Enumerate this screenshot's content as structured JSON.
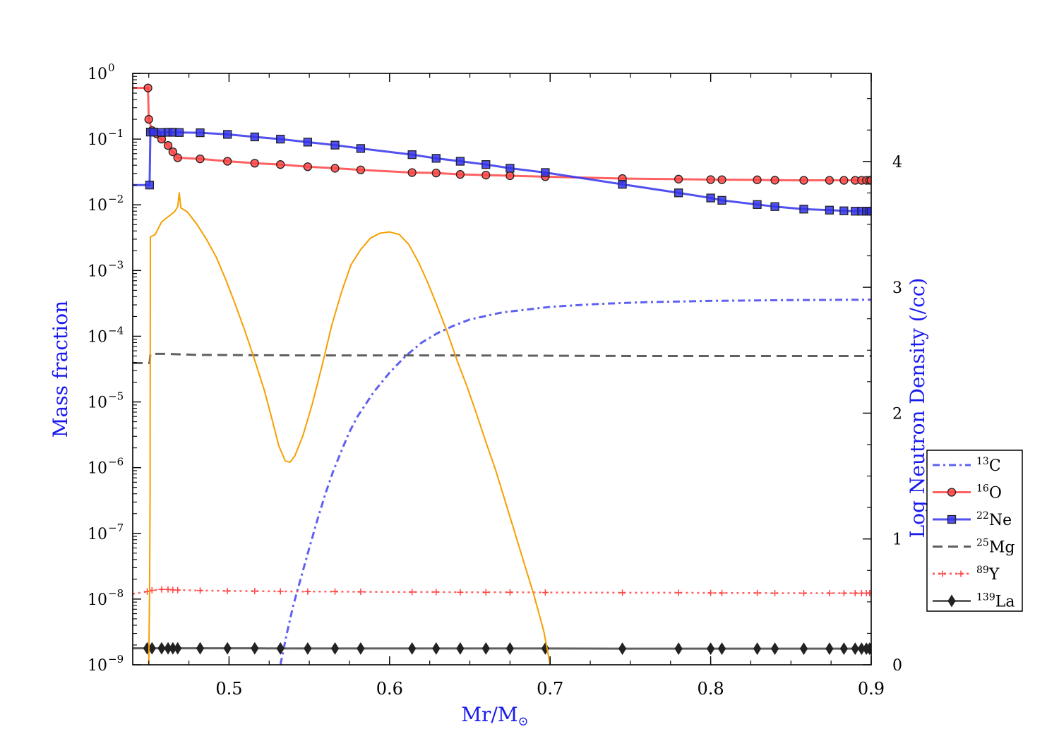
{
  "chart_data": {
    "type": "line",
    "xlabel": "Mr/M",
    "xlabel_symbol": "⊙",
    "ylabel_left": "Mass fraction",
    "ylabel_right": "Log Neutron Density (/cc)",
    "xlim": [
      0.44,
      0.9
    ],
    "ylim_left": [
      1e-09,
      1
    ],
    "yscale_left": "log",
    "ylim_right": [
      0,
      4.7
    ],
    "x_ticks": [
      0.5,
      0.6,
      0.7,
      0.8,
      0.9
    ],
    "x_tick_labels": [
      "0.5",
      "0.6",
      "0.7",
      "0.8",
      "0.9"
    ],
    "y_left_ticks": [
      -9,
      -8,
      -7,
      -6,
      -5,
      -4,
      -3,
      -2,
      -1,
      0
    ],
    "y_left_tick_labels": [
      {
        "base": "10",
        "exp": "−9"
      },
      {
        "base": "10",
        "exp": "−8"
      },
      {
        "base": "10",
        "exp": "−7"
      },
      {
        "base": "10",
        "exp": "−6"
      },
      {
        "base": "10",
        "exp": "−5"
      },
      {
        "base": "10",
        "exp": "−4"
      },
      {
        "base": "10",
        "exp": "−3"
      },
      {
        "base": "10",
        "exp": "−2"
      },
      {
        "base": "10",
        "exp": "−1"
      },
      {
        "base": "10",
        "exp": "0"
      }
    ],
    "y_right_ticks": [
      0,
      1,
      2,
      3,
      4
    ],
    "y_right_tick_labels": [
      "0",
      "1",
      "2",
      "3",
      "4"
    ],
    "legend_position": "right, outside plot",
    "series": [
      {
        "name": "13C",
        "label_mass": "13",
        "label_el": "C",
        "color": "#4444ee",
        "style": "dashdot",
        "marker": "none",
        "axis": "left",
        "points": [
          [
            0.532,
            1e-09
          ],
          [
            0.536,
            3e-09
          ],
          [
            0.54,
            8e-09
          ],
          [
            0.545,
            2.2e-08
          ],
          [
            0.55,
            6e-08
          ],
          [
            0.555,
            1.6e-07
          ],
          [
            0.56,
            4e-07
          ],
          [
            0.565,
            9e-07
          ],
          [
            0.57,
            1.8e-06
          ],
          [
            0.575,
            3.5e-06
          ],
          [
            0.58,
            6e-06
          ],
          [
            0.59,
            1.4e-05
          ],
          [
            0.6,
            2.8e-05
          ],
          [
            0.61,
            5e-05
          ],
          [
            0.62,
            8e-05
          ],
          [
            0.63,
            0.000112
          ],
          [
            0.64,
            0.000145
          ],
          [
            0.65,
            0.00018
          ],
          [
            0.67,
            0.00023
          ],
          [
            0.7,
            0.00028
          ],
          [
            0.73,
            0.00031
          ],
          [
            0.76,
            0.00033
          ],
          [
            0.8,
            0.000345
          ],
          [
            0.85,
            0.000355
          ],
          [
            0.9,
            0.00036
          ]
        ]
      },
      {
        "name": "16O",
        "label_mass": "16",
        "label_el": "O",
        "color": "#ff4444",
        "style": "solid",
        "marker": "circle",
        "axis": "left",
        "points": [
          [
            0.44,
            0.6
          ],
          [
            0.4495,
            0.6
          ],
          [
            0.45,
            0.2
          ],
          [
            0.452,
            0.135
          ],
          [
            0.455,
            0.12
          ],
          [
            0.458,
            0.1
          ],
          [
            0.462,
            0.08
          ],
          [
            0.465,
            0.064
          ],
          [
            0.468,
            0.052
          ],
          [
            0.482,
            0.05
          ],
          [
            0.499,
            0.046
          ],
          [
            0.516,
            0.043
          ],
          [
            0.532,
            0.041
          ],
          [
            0.549,
            0.038
          ],
          [
            0.566,
            0.036
          ],
          [
            0.582,
            0.034
          ],
          [
            0.614,
            0.031
          ],
          [
            0.629,
            0.0305
          ],
          [
            0.644,
            0.029
          ],
          [
            0.66,
            0.0283
          ],
          [
            0.675,
            0.0277
          ],
          [
            0.697,
            0.0268
          ],
          [
            0.745,
            0.0251
          ],
          [
            0.78,
            0.0246
          ],
          [
            0.8,
            0.0242
          ],
          [
            0.807,
            0.0241
          ],
          [
            0.829,
            0.024
          ],
          [
            0.84,
            0.0237
          ],
          [
            0.858,
            0.0236
          ],
          [
            0.874,
            0.0236
          ],
          [
            0.883,
            0.0236
          ],
          [
            0.89,
            0.0236
          ],
          [
            0.894,
            0.0236
          ],
          [
            0.897,
            0.0236
          ],
          [
            0.899,
            0.0236
          ],
          [
            0.9,
            0.0236
          ]
        ]
      },
      {
        "name": "22Ne",
        "label_mass": "22",
        "label_el": "Ne",
        "color": "#3333ee",
        "style": "solid",
        "marker": "square",
        "axis": "left",
        "points": [
          [
            0.44,
            0.02
          ],
          [
            0.4505,
            0.02
          ],
          [
            0.451,
            0.128
          ],
          [
            0.453,
            0.128
          ],
          [
            0.458,
            0.126
          ],
          [
            0.462,
            0.127
          ],
          [
            0.465,
            0.127
          ],
          [
            0.469,
            0.126
          ],
          [
            0.482,
            0.125
          ],
          [
            0.499,
            0.118
          ],
          [
            0.516,
            0.108
          ],
          [
            0.532,
            0.1
          ],
          [
            0.549,
            0.09
          ],
          [
            0.566,
            0.081
          ],
          [
            0.582,
            0.072
          ],
          [
            0.614,
            0.058
          ],
          [
            0.629,
            0.051
          ],
          [
            0.644,
            0.046
          ],
          [
            0.66,
            0.041
          ],
          [
            0.675,
            0.036
          ],
          [
            0.697,
            0.031
          ],
          [
            0.745,
            0.0205
          ],
          [
            0.78,
            0.0152
          ],
          [
            0.8,
            0.0127
          ],
          [
            0.807,
            0.0117
          ],
          [
            0.829,
            0.0101
          ],
          [
            0.84,
            0.0094
          ],
          [
            0.858,
            0.0086
          ],
          [
            0.874,
            0.0083
          ],
          [
            0.883,
            0.0081
          ],
          [
            0.89,
            0.008
          ],
          [
            0.894,
            0.008
          ],
          [
            0.897,
            0.008
          ],
          [
            0.899,
            0.008
          ],
          [
            0.9,
            0.008
          ]
        ]
      },
      {
        "name": "25Mg",
        "label_mass": "25",
        "label_el": "Mg",
        "color": "#444444",
        "style": "dashed",
        "marker": "none",
        "axis": "left",
        "points": [
          [
            0.44,
            3.9e-05
          ],
          [
            0.4505,
            3.9e-05
          ],
          [
            0.451,
            5.4e-05
          ],
          [
            0.46,
            5.4e-05
          ],
          [
            0.48,
            5.2e-05
          ],
          [
            0.55,
            5.1e-05
          ],
          [
            0.65,
            5.1e-05
          ],
          [
            0.75,
            5e-05
          ],
          [
            0.9,
            5e-05
          ]
        ]
      },
      {
        "name": "89Y",
        "label_mass": "89",
        "label_el": "Y",
        "color": "#ff4444",
        "style": "dotted",
        "marker": "plus",
        "axis": "left",
        "points": [
          [
            0.44,
            1.2e-08
          ],
          [
            0.449,
            1.3e-08
          ],
          [
            0.452,
            1.36e-08
          ],
          [
            0.458,
            1.4e-08
          ],
          [
            0.462,
            1.4e-08
          ],
          [
            0.465,
            1.38e-08
          ],
          [
            0.468,
            1.37e-08
          ],
          [
            0.482,
            1.35e-08
          ],
          [
            0.499,
            1.33e-08
          ],
          [
            0.516,
            1.32e-08
          ],
          [
            0.532,
            1.31e-08
          ],
          [
            0.549,
            1.3e-08
          ],
          [
            0.566,
            1.3e-08
          ],
          [
            0.582,
            1.29e-08
          ],
          [
            0.614,
            1.28e-08
          ],
          [
            0.629,
            1.28e-08
          ],
          [
            0.644,
            1.27e-08
          ],
          [
            0.66,
            1.27e-08
          ],
          [
            0.675,
            1.27e-08
          ],
          [
            0.697,
            1.26e-08
          ],
          [
            0.745,
            1.25e-08
          ],
          [
            0.78,
            1.25e-08
          ],
          [
            0.8,
            1.24e-08
          ],
          [
            0.807,
            1.24e-08
          ],
          [
            0.829,
            1.24e-08
          ],
          [
            0.84,
            1.23e-08
          ],
          [
            0.858,
            1.23e-08
          ],
          [
            0.874,
            1.23e-08
          ],
          [
            0.883,
            1.23e-08
          ],
          [
            0.89,
            1.23e-08
          ],
          [
            0.894,
            1.23e-08
          ],
          [
            0.897,
            1.23e-08
          ],
          [
            0.899,
            1.23e-08
          ],
          [
            0.9,
            1.23e-08
          ]
        ]
      },
      {
        "name": "139La",
        "label_mass": "139",
        "label_el": "La",
        "color": "#444444",
        "style": "solid",
        "marker": "diamond",
        "axis": "left",
        "points": [
          [
            0.44,
            1.78e-09
          ],
          [
            0.449,
            1.78e-09
          ],
          [
            0.452,
            1.78e-09
          ],
          [
            0.458,
            1.78e-09
          ],
          [
            0.462,
            1.78e-09
          ],
          [
            0.465,
            1.78e-09
          ],
          [
            0.468,
            1.78e-09
          ],
          [
            0.482,
            1.78e-09
          ],
          [
            0.499,
            1.78e-09
          ],
          [
            0.516,
            1.78e-09
          ],
          [
            0.532,
            1.77e-09
          ],
          [
            0.549,
            1.77e-09
          ],
          [
            0.566,
            1.77e-09
          ],
          [
            0.582,
            1.77e-09
          ],
          [
            0.614,
            1.77e-09
          ],
          [
            0.629,
            1.77e-09
          ],
          [
            0.644,
            1.77e-09
          ],
          [
            0.66,
            1.77e-09
          ],
          [
            0.675,
            1.77e-09
          ],
          [
            0.697,
            1.77e-09
          ],
          [
            0.745,
            1.76e-09
          ],
          [
            0.78,
            1.76e-09
          ],
          [
            0.8,
            1.76e-09
          ],
          [
            0.807,
            1.76e-09
          ],
          [
            0.829,
            1.76e-09
          ],
          [
            0.84,
            1.76e-09
          ],
          [
            0.858,
            1.76e-09
          ],
          [
            0.874,
            1.76e-09
          ],
          [
            0.883,
            1.76e-09
          ],
          [
            0.89,
            1.76e-09
          ],
          [
            0.894,
            1.76e-09
          ],
          [
            0.897,
            1.76e-09
          ],
          [
            0.899,
            1.76e-09
          ],
          [
            0.9,
            1.76e-09
          ]
        ]
      },
      {
        "name": "",
        "color": "#f5a000",
        "style": "solid",
        "marker": "none",
        "axis": "right",
        "points": [
          [
            0.45,
            0.0
          ],
          [
            0.4505,
            0.6
          ],
          [
            0.4508,
            1.3
          ],
          [
            0.451,
            3.4
          ],
          [
            0.454,
            3.42
          ],
          [
            0.458,
            3.52
          ],
          [
            0.462,
            3.56
          ],
          [
            0.466,
            3.6
          ],
          [
            0.468,
            3.64
          ],
          [
            0.469,
            3.75
          ],
          [
            0.47,
            3.63
          ],
          [
            0.474,
            3.6
          ],
          [
            0.48,
            3.5
          ],
          [
            0.486,
            3.38
          ],
          [
            0.492,
            3.24
          ],
          [
            0.498,
            3.06
          ],
          [
            0.504,
            2.86
          ],
          [
            0.51,
            2.65
          ],
          [
            0.516,
            2.42
          ],
          [
            0.522,
            2.18
          ],
          [
            0.527,
            1.94
          ],
          [
            0.531,
            1.74
          ],
          [
            0.535,
            1.62
          ],
          [
            0.538,
            1.61
          ],
          [
            0.541,
            1.66
          ],
          [
            0.546,
            1.82
          ],
          [
            0.552,
            2.08
          ],
          [
            0.558,
            2.38
          ],
          [
            0.564,
            2.7
          ],
          [
            0.57,
            2.96
          ],
          [
            0.576,
            3.18
          ],
          [
            0.582,
            3.3
          ],
          [
            0.588,
            3.39
          ],
          [
            0.594,
            3.43
          ],
          [
            0.6,
            3.44
          ],
          [
            0.606,
            3.42
          ],
          [
            0.612,
            3.34
          ],
          [
            0.618,
            3.2
          ],
          [
            0.624,
            3.03
          ],
          [
            0.63,
            2.84
          ],
          [
            0.636,
            2.64
          ],
          [
            0.642,
            2.42
          ],
          [
            0.648,
            2.22
          ],
          [
            0.654,
            2.0
          ],
          [
            0.66,
            1.77
          ],
          [
            0.666,
            1.55
          ],
          [
            0.672,
            1.3
          ],
          [
            0.678,
            1.05
          ],
          [
            0.684,
            0.8
          ],
          [
            0.69,
            0.55
          ],
          [
            0.696,
            0.27
          ],
          [
            0.7,
            0.0
          ]
        ]
      }
    ]
  }
}
